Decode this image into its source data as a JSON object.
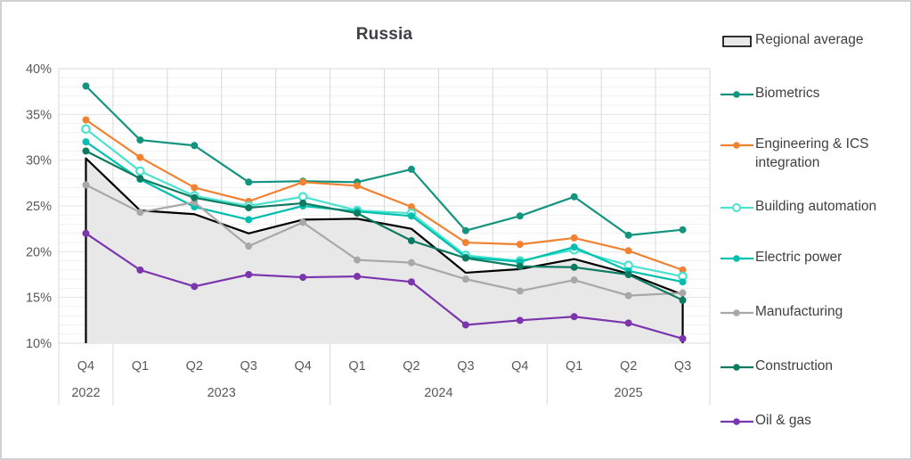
{
  "chart_data": {
    "type": "line",
    "title": "Russia",
    "legend_position": "right",
    "grid": true,
    "categories": [
      "Q4",
      "Q1",
      "Q2",
      "Q3",
      "Q4",
      "Q1",
      "Q2",
      "Q3",
      "Q4",
      "Q1",
      "Q2",
      "Q3"
    ],
    "year_groups": [
      {
        "label": "2022",
        "span": 1
      },
      {
        "label": "2023",
        "span": 4
      },
      {
        "label": "2024",
        "span": 4
      },
      {
        "label": "2025",
        "span": 3
      }
    ],
    "y_axis": {
      "min": 10,
      "max": 40,
      "major_step": 5,
      "minor_step": 1,
      "tick_labels": [
        "40%",
        "35%",
        "30%",
        "25%",
        "20%",
        "15%",
        "10%"
      ],
      "unit": "%"
    },
    "area_series": {
      "name": "Regional average",
      "fill": "#e8e8e8",
      "stroke": "#000000",
      "values": [
        30.2,
        24.5,
        24.1,
        22.0,
        23.5,
        23.6,
        22.5,
        17.7,
        18.1,
        19.2,
        17.6,
        15.3
      ]
    },
    "series": [
      {
        "name": "Biometrics",
        "color": "#13947f",
        "marker": "filled",
        "values": [
          38.1,
          32.2,
          31.6,
          27.6,
          27.7,
          27.6,
          29.0,
          22.3,
          23.9,
          26.0,
          21.8,
          22.4
        ]
      },
      {
        "name": "Engineering & ICS integration",
        "color": "#f08232",
        "marker": "filled",
        "values": [
          34.4,
          30.3,
          27.0,
          25.5,
          27.6,
          27.2,
          24.9,
          21.0,
          20.8,
          21.5,
          20.1,
          18.0
        ]
      },
      {
        "name": "Building automation",
        "color": "#4be2cf",
        "marker": "open",
        "values": [
          33.4,
          28.8,
          26.1,
          25.0,
          26.0,
          24.5,
          24.2,
          19.6,
          19.0,
          20.2,
          18.5,
          17.3
        ]
      },
      {
        "name": "Electric power",
        "color": "#00bfae",
        "marker": "filled",
        "values": [
          32.0,
          27.9,
          24.9,
          23.5,
          25.0,
          24.4,
          23.9,
          19.4,
          18.9,
          20.5,
          17.9,
          16.7
        ]
      },
      {
        "name": "Manufacturing",
        "color": "#a8a8a8",
        "marker": "filled",
        "values": [
          27.3,
          24.3,
          25.4,
          20.6,
          23.2,
          19.1,
          18.8,
          17.0,
          15.7,
          16.9,
          15.2,
          15.5
        ]
      },
      {
        "name": "Construction",
        "color": "#0d7b62",
        "marker": "filled",
        "values": [
          31.0,
          28.0,
          25.9,
          24.8,
          25.3,
          24.2,
          21.2,
          19.3,
          18.4,
          18.3,
          17.5,
          14.7
        ]
      },
      {
        "name": "Oil & gas",
        "color": "#7b35ad",
        "marker": "filled",
        "values": [
          22.0,
          18.0,
          16.2,
          17.5,
          17.2,
          17.3,
          16.7,
          12.0,
          12.5,
          12.9,
          12.2,
          10.5
        ]
      }
    ],
    "colors": {
      "axis_text": "#595959",
      "title_text": "#3f4047",
      "legend_text": "#404040",
      "grid_minor": "#f1f1f1",
      "grid_major": "#e3e3e3",
      "grid_vertical": "#d9d9d9",
      "plot_border": "#d9d9d9"
    }
  }
}
